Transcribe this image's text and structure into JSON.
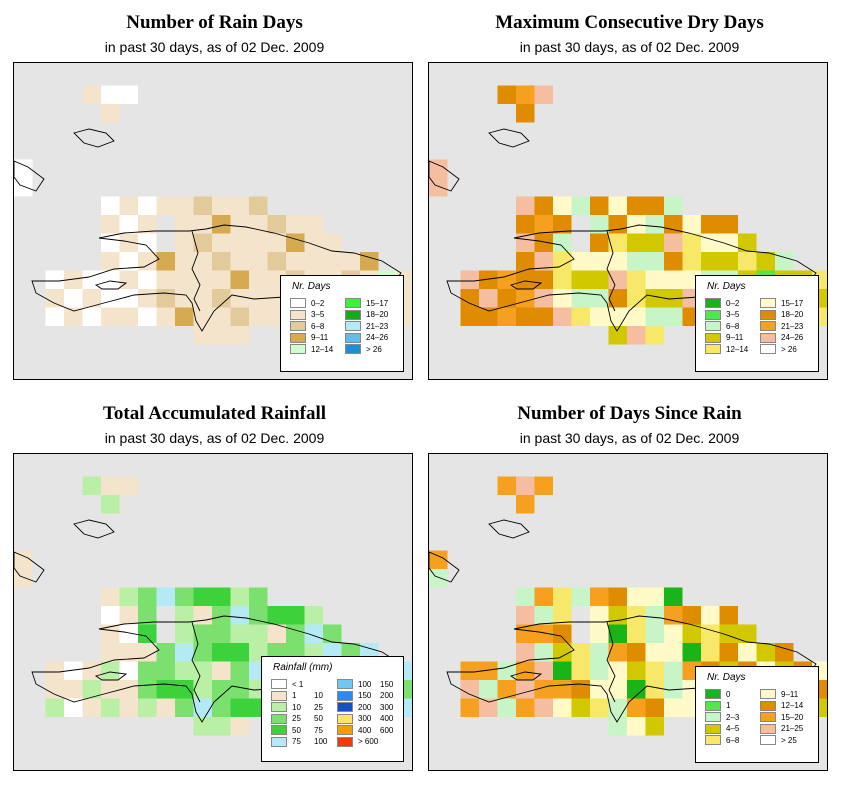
{
  "panels": [
    {
      "id": "rain-days",
      "title": "Number of Rain Days",
      "subtitle": "in past 30 days, as of  02 Dec. 2009",
      "legend_title": "Nr. Days",
      "legend": [
        {
          "label": "0–2",
          "color": "#ffffff"
        },
        {
          "label": "3–5",
          "color": "#f3e4cb"
        },
        {
          "label": "6–8",
          "color": "#e3ca9b"
        },
        {
          "label": "9–11",
          "color": "#d5aa50"
        },
        {
          "label": "12–14",
          "color": "#cfffcf"
        },
        {
          "label": "15–17",
          "color": "#3cf03c"
        },
        {
          "label": "18–20",
          "color": "#0fad19"
        },
        {
          "label": "21–23",
          "color": "#b4eaf5"
        },
        {
          "label": "24–26",
          "color": "#66bce8"
        },
        {
          "label": "> 26",
          "color": "#1e8fd5"
        }
      ]
    },
    {
      "id": "dry-days",
      "title": "Maximum Consecutive Dry Days",
      "subtitle": "in past 30 days, as of  02 Dec. 2009",
      "legend_title": "Nr. Days",
      "legend": [
        {
          "label": "0–2",
          "color": "#18b418"
        },
        {
          "label": "3–5",
          "color": "#50e650"
        },
        {
          "label": "6–8",
          "color": "#c8f5c8"
        },
        {
          "label": "9–11",
          "color": "#d2c800"
        },
        {
          "label": "12–14",
          "color": "#f7e86a"
        },
        {
          "label": "15–17",
          "color": "#fffac8"
        },
        {
          "label": "18–20",
          "color": "#e08c00"
        },
        {
          "label": "21–23",
          "color": "#f5a01e"
        },
        {
          "label": "24–26",
          "color": "#f5bea0"
        },
        {
          "label": "> 26",
          "color": "#ffffff"
        }
      ]
    },
    {
      "id": "rainfall",
      "title": "Total Accumulated Rainfall",
      "subtitle": "in past 30 days, as of  02 Dec. 2009",
      "legend_title": "Rainfall (mm)",
      "legend": [
        {
          "label": "< 1",
          "label2": "",
          "color": "#ffffff"
        },
        {
          "label": "1",
          "label2": "10",
          "color": "#f3e4cb"
        },
        {
          "label": "10",
          "label2": "25",
          "color": "#b9f0a5"
        },
        {
          "label": "25",
          "label2": "50",
          "color": "#7ce06e"
        },
        {
          "label": "50",
          "label2": "75",
          "color": "#3cd23c"
        },
        {
          "label": "75",
          "label2": "100",
          "color": "#b4eaf5"
        },
        {
          "label": "100",
          "label2": "150",
          "color": "#6ec8f0"
        },
        {
          "label": "150",
          "label2": "200",
          "color": "#288cf0"
        },
        {
          "label": "200",
          "label2": "300",
          "color": "#1450c8"
        },
        {
          "label": "300",
          "label2": "400",
          "color": "#fae664"
        },
        {
          "label": "400",
          "label2": "600",
          "color": "#f5a000"
        },
        {
          "label": "> 600",
          "label2": "",
          "color": "#f03c00"
        }
      ]
    },
    {
      "id": "since-rain",
      "title": "Number of Days Since Rain",
      "subtitle": "in past 30 days, as of  02 Dec. 2009",
      "legend_title": "Nr. Days",
      "legend": [
        {
          "label": "0",
          "color": "#18b418"
        },
        {
          "label": "1",
          "color": "#50e650"
        },
        {
          "label": "2–3",
          "color": "#c8f5c8"
        },
        {
          "label": "4–5",
          "color": "#d2c800"
        },
        {
          "label": "6–8",
          "color": "#f7e86a"
        },
        {
          "label": "9–11",
          "color": "#fffac8"
        },
        {
          "label": "12–14",
          "color": "#e08c00"
        },
        {
          "label": "15–20",
          "color": "#f5a01e"
        },
        {
          "label": "21–25",
          "color": "#f5bea0"
        },
        {
          "label": "> 25",
          "color": "#ffffff"
        }
      ]
    }
  ]
}
